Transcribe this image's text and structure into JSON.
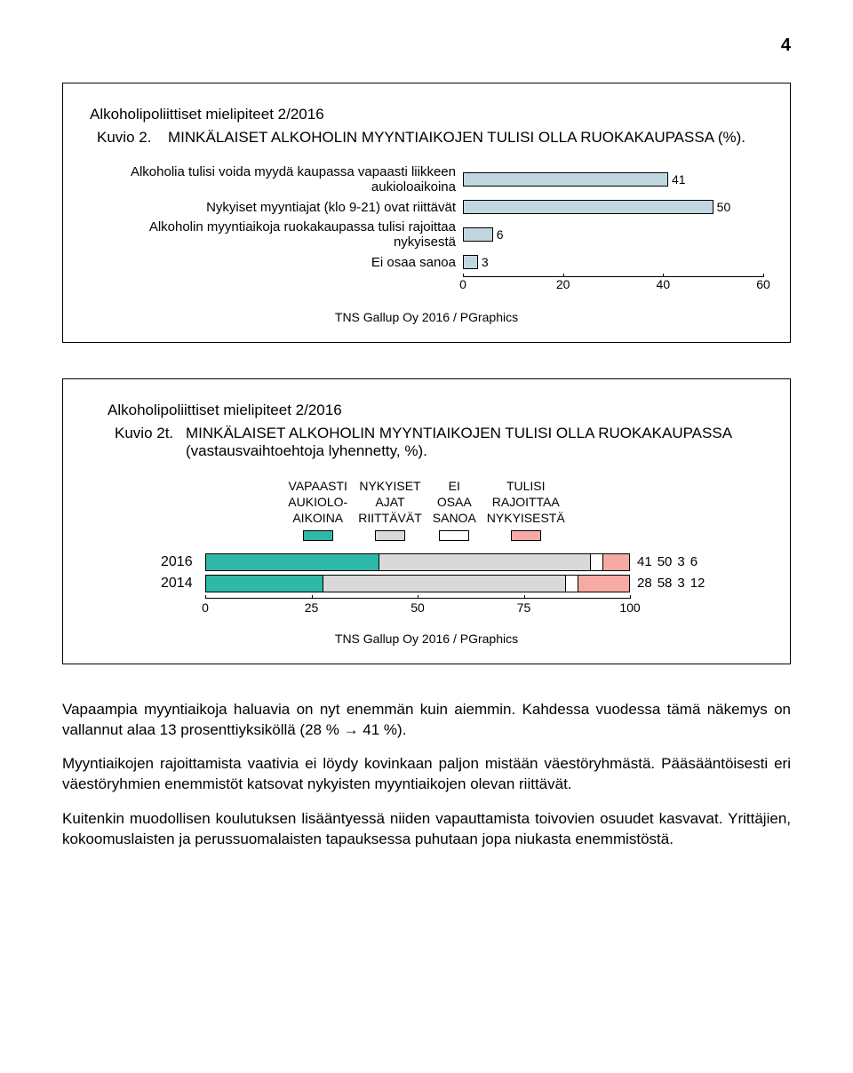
{
  "page_number": "4",
  "chart1": {
    "box_title": "Alkoholipoliittiset mielipiteet 2/2016",
    "kuvio_label": "Kuvio 2.",
    "kuvio_text": "MINKÄLAISET ALKOHOLIN MYYNTIAIKOJEN TULISI OLLA RUOKAKAUPASSA (%).",
    "xlim": 60,
    "ticks": [
      0,
      20,
      40,
      60
    ],
    "bar_fill": "#c1d7e0",
    "bar_stroke": "#000000",
    "rows": [
      {
        "label": "Alkoholia tulisi voida myydä kaupassa vapaasti liikkeen aukioloaikoina",
        "value": 41
      },
      {
        "label": "Nykyiset myyntiajat (klo 9-21) ovat riittävät",
        "value": 50
      },
      {
        "label": "Alkoholin myyntiaikoja ruokakaupassa tulisi rajoittaa nykyisestä",
        "value": 6
      },
      {
        "label": "Ei osaa sanoa",
        "value": 3
      }
    ],
    "source": "TNS Gallup Oy 2016 / PGraphics"
  },
  "chart2": {
    "box_title": "Alkoholipoliittiset mielipiteet 2/2016",
    "kuvio_label": "Kuvio 2t.",
    "kuvio_text": "MINKÄLAISET ALKOHOLIN MYYNTIAIKOJEN TULISI OLLA RUOKAKAUPASSA (vastausvaihtoehtoja lyhennetty, %).",
    "legend": [
      {
        "lines": [
          "VAPAASTI",
          "AUKIOLO-",
          "AIKOINA"
        ],
        "color": "#2eb8a8"
      },
      {
        "lines": [
          "NYKYISET",
          "AJAT",
          "RIITTÄVÄT"
        ],
        "color": "#d9d9d9"
      },
      {
        "lines": [
          "EI",
          "OSAA",
          "SANOA"
        ],
        "color": "#ffffff"
      },
      {
        "lines": [
          "TULISI",
          "RAJOITTAA",
          "NYKYISESTÄ"
        ],
        "color": "#f7a9a3"
      }
    ],
    "xlim": 100,
    "ticks": [
      0,
      25,
      50,
      75,
      100
    ],
    "rows": [
      {
        "year": "2016",
        "values": [
          41,
          50,
          3,
          6
        ]
      },
      {
        "year": "2014",
        "values": [
          28,
          58,
          3,
          12
        ]
      }
    ],
    "source": "TNS Gallup Oy 2016 / PGraphics"
  },
  "paragraphs": [
    "Vapaampia myyntiaikoja haluavia on nyt enemmän kuin aiemmin. Kahdessa vuodessa tämä näkemys on vallannut alaa 13 prosenttiyksiköllä (28 % → 41 %).",
    "Myyntiaikojen rajoittamista vaativia ei löydy kovinkaan paljon mistään väestöryhmästä. Pääsääntöisesti eri väestöryhmien enemmistöt katsovat nykyisten myyntiaikojen olevan riittävät.",
    "Kuitenkin muodollisen koulutuksen lisääntyessä niiden vapauttamista toivovien osuudet kasvavat. Yrittäjien, kokoomuslaisten ja perussuomalaisten tapauksessa puhutaan jopa niukasta enemmistöstä."
  ]
}
